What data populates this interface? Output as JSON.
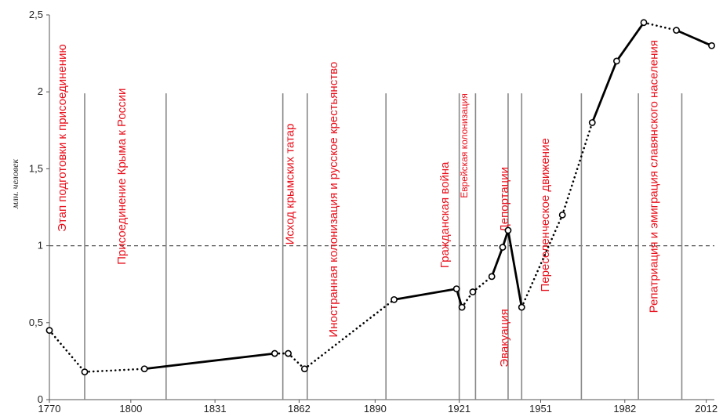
{
  "chart_data": {
    "type": "line",
    "title": "",
    "xlabel": "",
    "ylabel": "млн. человек",
    "xlim": [
      1770,
      2015
    ],
    "ylim": [
      0,
      2.5
    ],
    "x_ticks": [
      "1770",
      "1800",
      "1831",
      "1862",
      "1890",
      "1921",
      "1951",
      "1982",
      "2012"
    ],
    "y_ticks": [
      "0",
      "0,5",
      "1",
      "1,5",
      "2",
      "2,5"
    ],
    "grid": false,
    "reference_line": {
      "y": 1,
      "style": "dashed"
    },
    "series": [
      {
        "x": [
          1770,
          1783,
          1805,
          1853,
          1858,
          1864,
          1897,
          1920,
          1922,
          1926,
          1933,
          1937,
          1939,
          1944,
          1959,
          1970,
          1979,
          1989,
          2001,
          2014
        ],
        "y": [
          0.45,
          0.18,
          0.2,
          0.3,
          0.3,
          0.2,
          0.65,
          0.72,
          0.6,
          0.7,
          0.8,
          0.99,
          1.1,
          0.6,
          1.2,
          1.8,
          2.2,
          2.45,
          2.4,
          2.3
        ],
        "segment_styles": [
          "dotted",
          "dotted",
          "solid",
          "dotted",
          "dotted",
          "dotted",
          "solid",
          "solid",
          "dotted",
          "dotted",
          "solid",
          "solid",
          "solid",
          "dotted",
          "dotted",
          "solid",
          "solid",
          "dotted",
          "solid"
        ]
      }
    ],
    "boundaries": [
      1783,
      1813,
      1856,
      1865,
      1894,
      1921,
      1927,
      1939,
      1944,
      1966,
      1987,
      2003
    ],
    "periods": [
      {
        "label": "Этап подготовки к присоединению",
        "x": 1776,
        "y": 1.7
      },
      {
        "label": "Присоединение Крыма к России",
        "x": 1798,
        "y": 1.45
      },
      {
        "label": "Исход крымских татар",
        "x": 1860,
        "y": 1.4
      },
      {
        "label": "Иностранная колонизация и русское крестьянство",
        "x": 1876,
        "y": 1.3
      },
      {
        "label": "Гражданская война",
        "x": 1917,
        "y": 1.2
      },
      {
        "label": "Еврейская колонизация",
        "x": 1924,
        "y": 1.65
      },
      {
        "label": "Депортации",
        "x": 1939,
        "y": 1.3
      },
      {
        "label": "Эвакуация",
        "x": 1939,
        "y": 0.4
      },
      {
        "label": "Переселенческое движение",
        "x": 1954,
        "y": 1.2
      },
      {
        "label": "Репатриация и эмиграция славянского населения",
        "x": 1994,
        "y": 1.45
      }
    ]
  }
}
